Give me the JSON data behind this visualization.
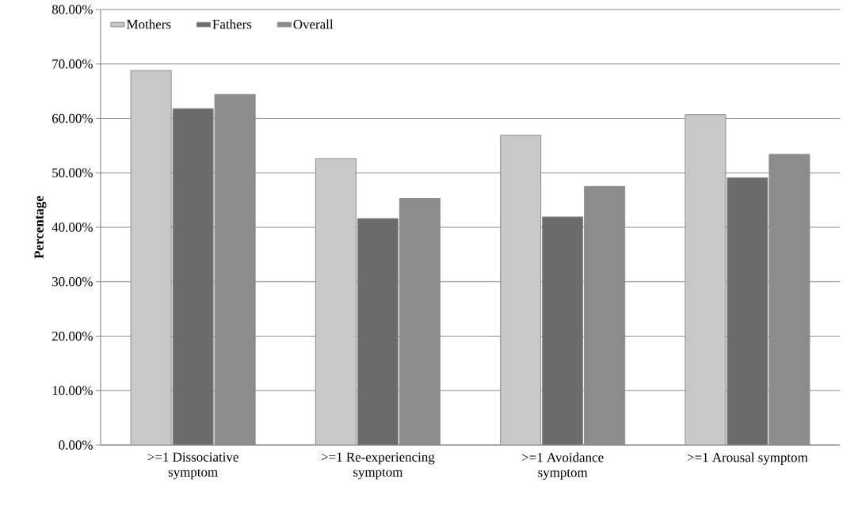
{
  "chart_data": {
    "type": "bar",
    "ylabel": "Percentage",
    "categories": [
      ">=1 Dissociative symptom",
      ">=1 Re-experiencing symptom",
      ">=1 Avoidance symptom",
      ">=1 Arousal symptom"
    ],
    "series": [
      {
        "name": "Mothers",
        "color": "#c8c8c8",
        "values": [
          68.8,
          52.6,
          56.9,
          60.7
        ]
      },
      {
        "name": "Fathers",
        "color": "#6b6b6b",
        "values": [
          61.8,
          41.6,
          41.9,
          49.1
        ]
      },
      {
        "name": "Overall",
        "color": "#8c8c8c",
        "values": [
          64.4,
          45.3,
          47.5,
          53.4
        ]
      }
    ],
    "ylim": [
      0,
      80
    ],
    "yticks": [
      {
        "value": 0,
        "label": "0.00%"
      },
      {
        "value": 10,
        "label": "10.00%"
      },
      {
        "value": 20,
        "label": "20.00%"
      },
      {
        "value": 30,
        "label": "30.00%"
      },
      {
        "value": 40,
        "label": "40.00%"
      },
      {
        "value": 50,
        "label": "50.00%"
      },
      {
        "value": 60,
        "label": "60.00%"
      },
      {
        "value": 70,
        "label": "70.00%"
      },
      {
        "value": 80,
        "label": "80.00%"
      }
    ],
    "grid": "y",
    "legend": "top left"
  }
}
